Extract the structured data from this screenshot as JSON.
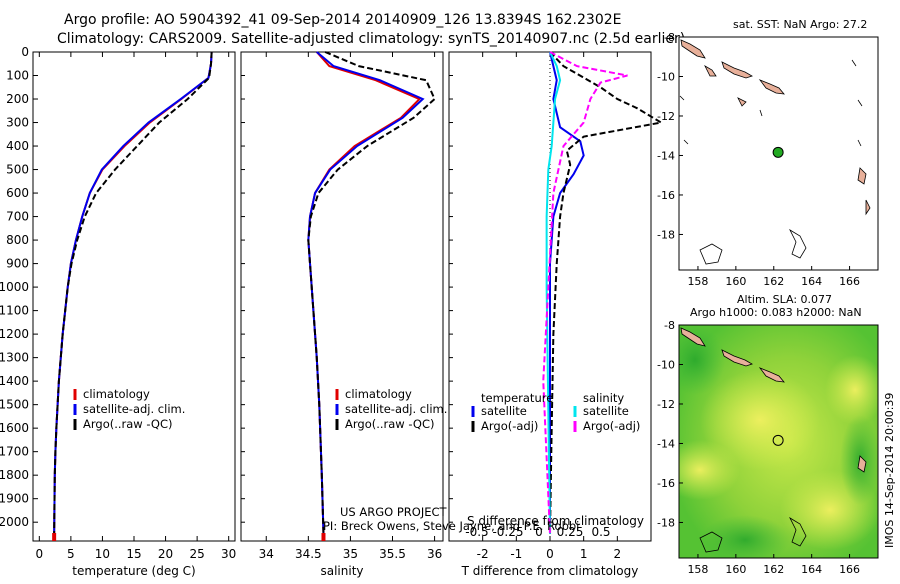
{
  "header": {
    "line1": "Argo profile: AO 5904392_41 09-Sep-2014 20140909_126 13.8394S 162.2302E",
    "line2": "Climatology: CARS2009. Satellite-adjusted climatology: synTS_20140907.nc (2.5d earlier)"
  },
  "footer": {
    "project": "US ARGO PROJECT",
    "pi": "PI: Breck Owens, Steve Jayne, and P.E. Robbi",
    "timestamp": "IMOS 14-Sep-2014 20:00:39"
  },
  "colors": {
    "clim": "#e00000",
    "satadj": "#0000ee",
    "argo": "#000000",
    "sal_sat": "#00e5ee",
    "sal_argo": "#ff00ff",
    "argo_dot": "#22aa22",
    "land": "#e8b09a"
  },
  "chart_data": [
    {
      "id": "temperature",
      "type": "line",
      "xlabel": "temperature (deg C)",
      "ylabel": "",
      "xlim": [
        -1,
        31
      ],
      "ylim": [
        2080,
        0
      ],
      "xticks": [
        0,
        5,
        10,
        15,
        20,
        25,
        30
      ],
      "yticks": [
        0,
        100,
        200,
        300,
        400,
        500,
        600,
        700,
        800,
        900,
        1000,
        1100,
        1200,
        1300,
        1400,
        1500,
        1600,
        1700,
        1800,
        1900,
        2000
      ],
      "legend": [
        "climatology",
        "satellite-adj. clim.",
        "Argo(..raw -QC)"
      ],
      "series": [
        {
          "name": "climatology",
          "color": "#e00000",
          "x": [
            27.3,
            27.2,
            26.8,
            22.5,
            17.5,
            13.5,
            10.0,
            8.0,
            6.8,
            5.8,
            5.0,
            4.5,
            4.1,
            3.7,
            3.4,
            3.1,
            2.9,
            2.7,
            2.55,
            2.45,
            2.35
          ],
          "y": [
            0,
            50,
            110,
            200,
            300,
            400,
            500,
            600,
            700,
            800,
            900,
            1000,
            1100,
            1200,
            1300,
            1400,
            1500,
            1600,
            1700,
            1800,
            2050
          ]
        },
        {
          "name": "satellite-adj. clim.",
          "color": "#0000ee",
          "x": [
            27.3,
            27.2,
            26.8,
            22.4,
            17.3,
            13.3,
            9.9,
            8.0,
            6.8,
            5.8,
            5.0,
            4.5,
            4.1,
            3.7,
            3.4,
            3.1,
            2.9,
            2.7,
            2.55,
            2.45,
            2.35
          ],
          "y": [
            0,
            50,
            110,
            200,
            300,
            400,
            500,
            600,
            700,
            800,
            900,
            1000,
            1100,
            1200,
            1300,
            1400,
            1500,
            1600,
            1700,
            1800,
            2050
          ]
        },
        {
          "name": "Argo(..raw -QC)",
          "color": "#000000",
          "x": [
            27.3,
            27.2,
            26.9,
            23.5,
            19.0,
            15.5,
            12.0,
            9.0,
            7.2,
            6.0,
            5.1,
            4.5,
            4.1,
            3.7,
            3.4,
            3.1,
            2.9,
            2.7,
            2.55,
            2.45,
            2.35
          ],
          "y": [
            0,
            50,
            110,
            200,
            300,
            400,
            500,
            600,
            700,
            800,
            900,
            1000,
            1100,
            1200,
            1300,
            1400,
            1500,
            1600,
            1700,
            1800,
            2050
          ]
        }
      ]
    },
    {
      "id": "salinity",
      "type": "line",
      "xlabel": "salinity",
      "xlim": [
        33.7,
        36.1
      ],
      "ylim": [
        2080,
        0
      ],
      "xticks": [
        34,
        34.5,
        35,
        35.5,
        36
      ],
      "legend": [
        "climatology",
        "satellite-adj. clim.",
        "Argo(..raw -QC)"
      ],
      "series": [
        {
          "name": "climatology",
          "color": "#e00000",
          "x": [
            34.6,
            34.75,
            35.3,
            35.82,
            35.6,
            35.05,
            34.75,
            34.58,
            34.52,
            34.5,
            34.52,
            34.56,
            34.6,
            34.63,
            34.66,
            34.68
          ],
          "y": [
            0,
            60,
            120,
            200,
            280,
            400,
            500,
            600,
            700,
            800,
            900,
            1100,
            1300,
            1500,
            1800,
            2050
          ]
        },
        {
          "name": "satellite-adj. clim.",
          "color": "#0000ee",
          "x": [
            34.6,
            34.8,
            35.35,
            35.86,
            35.62,
            35.08,
            34.76,
            34.58,
            34.52,
            34.5,
            34.52,
            34.56,
            34.6,
            34.63,
            34.66,
            34.68
          ],
          "y": [
            0,
            60,
            120,
            200,
            280,
            400,
            500,
            600,
            700,
            800,
            900,
            1100,
            1300,
            1500,
            1800,
            2050
          ]
        },
        {
          "name": "Argo(..raw -QC)",
          "color": "#000000",
          "x": [
            34.7,
            35.1,
            35.9,
            36.0,
            35.75,
            35.2,
            34.85,
            34.62,
            34.53,
            34.5,
            34.52,
            34.56,
            34.6,
            34.63,
            34.66,
            34.68
          ],
          "y": [
            0,
            60,
            120,
            200,
            280,
            400,
            500,
            600,
            700,
            800,
            900,
            1100,
            1300,
            1500,
            1800,
            2050
          ]
        }
      ]
    },
    {
      "id": "difference",
      "type": "line",
      "xlabel": "T difference from climatology",
      "xlabel_top": "S difference from climatology",
      "xlim": [
        -3,
        3
      ],
      "ylim": [
        2080,
        0
      ],
      "xticks": [
        -2,
        -1,
        0,
        1,
        2
      ],
      "xticks_s": [
        "-0.5",
        "-0.25",
        "0",
        "0.25",
        "0.5"
      ],
      "legend_headers": [
        "temperature",
        "salinity"
      ],
      "legend": [
        "satellite",
        "Argo(-adj)",
        "satellite",
        "Argo(-adj)"
      ],
      "series": [
        {
          "name": "satellite",
          "color": "#0000ee",
          "x": [
            0,
            0.1,
            0.2,
            0.1,
            0.2,
            0.3,
            0.9,
            1.0,
            0.7,
            0.3,
            0.1,
            0,
            0,
            0
          ],
          "y": [
            0,
            60,
            120,
            200,
            260,
            320,
            380,
            440,
            520,
            600,
            700,
            900,
            1500,
            2050
          ]
        },
        {
          "name": "Argo(-adj)",
          "color": "#000000",
          "x": [
            0,
            0.4,
            1.5,
            2.0,
            2.6,
            3.3,
            1.0,
            0.5,
            0.6,
            0.4,
            0.3,
            0.2,
            0.1,
            0.05,
            0
          ],
          "y": [
            0,
            60,
            150,
            200,
            240,
            300,
            360,
            420,
            480,
            600,
            700,
            900,
            1200,
            1600,
            2050
          ]
        },
        {
          "name": "satellite",
          "color": "#00e5ee",
          "x": [
            0,
            0.2,
            0.3,
            0.15,
            0.1,
            0.05,
            -0.05,
            -0.1,
            -0.1,
            0
          ],
          "y": [
            0,
            60,
            120,
            200,
            300,
            400,
            500,
            700,
            1000,
            2050
          ]
        },
        {
          "name": "Argo(-adj)",
          "color": "#ff00ff",
          "x": [
            0,
            0.8,
            2.3,
            1.5,
            1.2,
            1.0,
            0.4,
            0.1,
            -0.2,
            0
          ],
          "y": [
            0,
            60,
            100,
            130,
            200,
            300,
            400,
            600,
            1400,
            2050
          ]
        }
      ]
    }
  ],
  "maps": {
    "sst": {
      "title": "sat. SST: NaN Argo: 27.2",
      "xticks": [
        "158",
        "160",
        "162",
        "164",
        "166"
      ],
      "yticks": [
        "-8",
        "-10",
        "-12",
        "-14",
        "-16",
        "-18"
      ],
      "lon_range": [
        157,
        167.5
      ],
      "lat_range": [
        -8,
        -19.8
      ],
      "argo_lon": 162.23,
      "argo_lat": -13.84
    },
    "sla": {
      "title1": "Altim. SLA: 0.077",
      "title2": "Argo h1000: 0.083 h2000: NaN",
      "xticks": [
        "158",
        "160",
        "162",
        "164",
        "166"
      ],
      "yticks": [
        "-8",
        "-10",
        "-12",
        "-14",
        "-16",
        "-18"
      ],
      "lon_range": [
        157,
        167.5
      ],
      "lat_range": [
        -8,
        -19.8
      ],
      "argo_lon": 162.23,
      "argo_lat": -13.84
    }
  }
}
